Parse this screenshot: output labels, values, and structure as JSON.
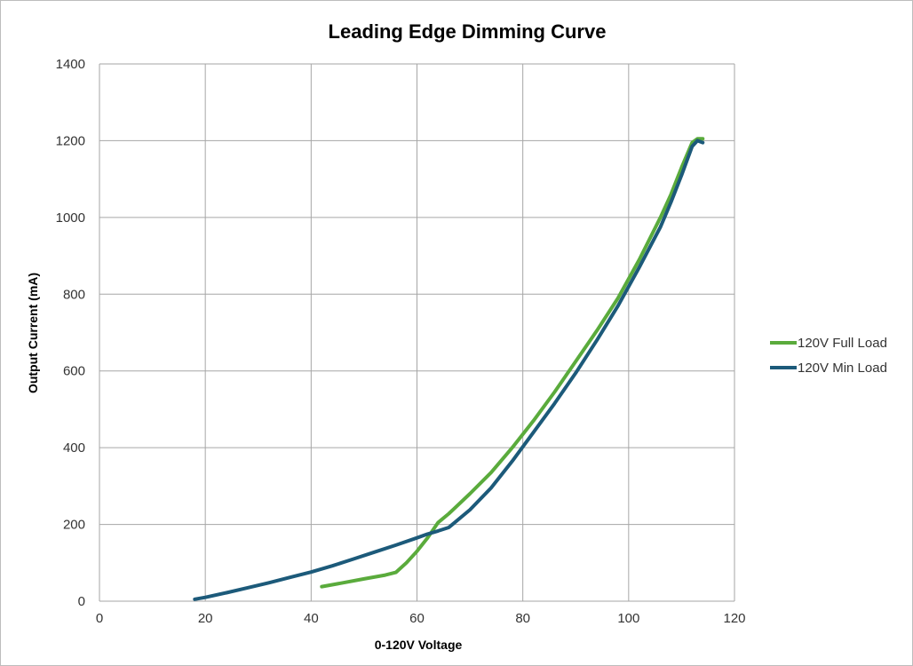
{
  "chart_data": {
    "type": "line",
    "title": "Leading Edge Dimming Curve",
    "xlabel": "0-120V Voltage",
    "ylabel": "Output Current (mA)",
    "xlim": [
      0,
      120
    ],
    "ylim": [
      0,
      1400
    ],
    "xticks": [
      0,
      20,
      40,
      60,
      80,
      100,
      120
    ],
    "yticks": [
      0,
      200,
      400,
      600,
      800,
      1000,
      1200,
      1400
    ],
    "grid": true,
    "legend_position": "right",
    "series": [
      {
        "name": "120V Full Load",
        "color": "#5aab3c",
        "points": [
          [
            42,
            38
          ],
          [
            46,
            48
          ],
          [
            50,
            58
          ],
          [
            54,
            68
          ],
          [
            56,
            75
          ],
          [
            58,
            100
          ],
          [
            60,
            130
          ],
          [
            62,
            165
          ],
          [
            64,
            205
          ],
          [
            66,
            228
          ],
          [
            70,
            280
          ],
          [
            74,
            335
          ],
          [
            78,
            400
          ],
          [
            82,
            470
          ],
          [
            86,
            545
          ],
          [
            90,
            625
          ],
          [
            94,
            705
          ],
          [
            98,
            790
          ],
          [
            102,
            890
          ],
          [
            106,
            1000
          ],
          [
            108,
            1060
          ],
          [
            110,
            1130
          ],
          [
            112,
            1195
          ],
          [
            113,
            1205
          ],
          [
            114,
            1205
          ]
        ]
      },
      {
        "name": "120V Min Load",
        "color": "#1c5a7a",
        "points": [
          [
            18,
            5
          ],
          [
            20,
            10
          ],
          [
            24,
            22
          ],
          [
            28,
            35
          ],
          [
            32,
            48
          ],
          [
            36,
            62
          ],
          [
            40,
            76
          ],
          [
            44,
            92
          ],
          [
            48,
            110
          ],
          [
            52,
            128
          ],
          [
            56,
            146
          ],
          [
            60,
            165
          ],
          [
            62,
            175
          ],
          [
            64,
            183
          ],
          [
            66,
            192
          ],
          [
            70,
            238
          ],
          [
            74,
            295
          ],
          [
            78,
            365
          ],
          [
            82,
            440
          ],
          [
            86,
            515
          ],
          [
            90,
            595
          ],
          [
            94,
            680
          ],
          [
            98,
            770
          ],
          [
            102,
            870
          ],
          [
            106,
            975
          ],
          [
            108,
            1040
          ],
          [
            110,
            1110
          ],
          [
            112,
            1185
          ],
          [
            113,
            1200
          ],
          [
            114,
            1195
          ]
        ]
      }
    ]
  }
}
